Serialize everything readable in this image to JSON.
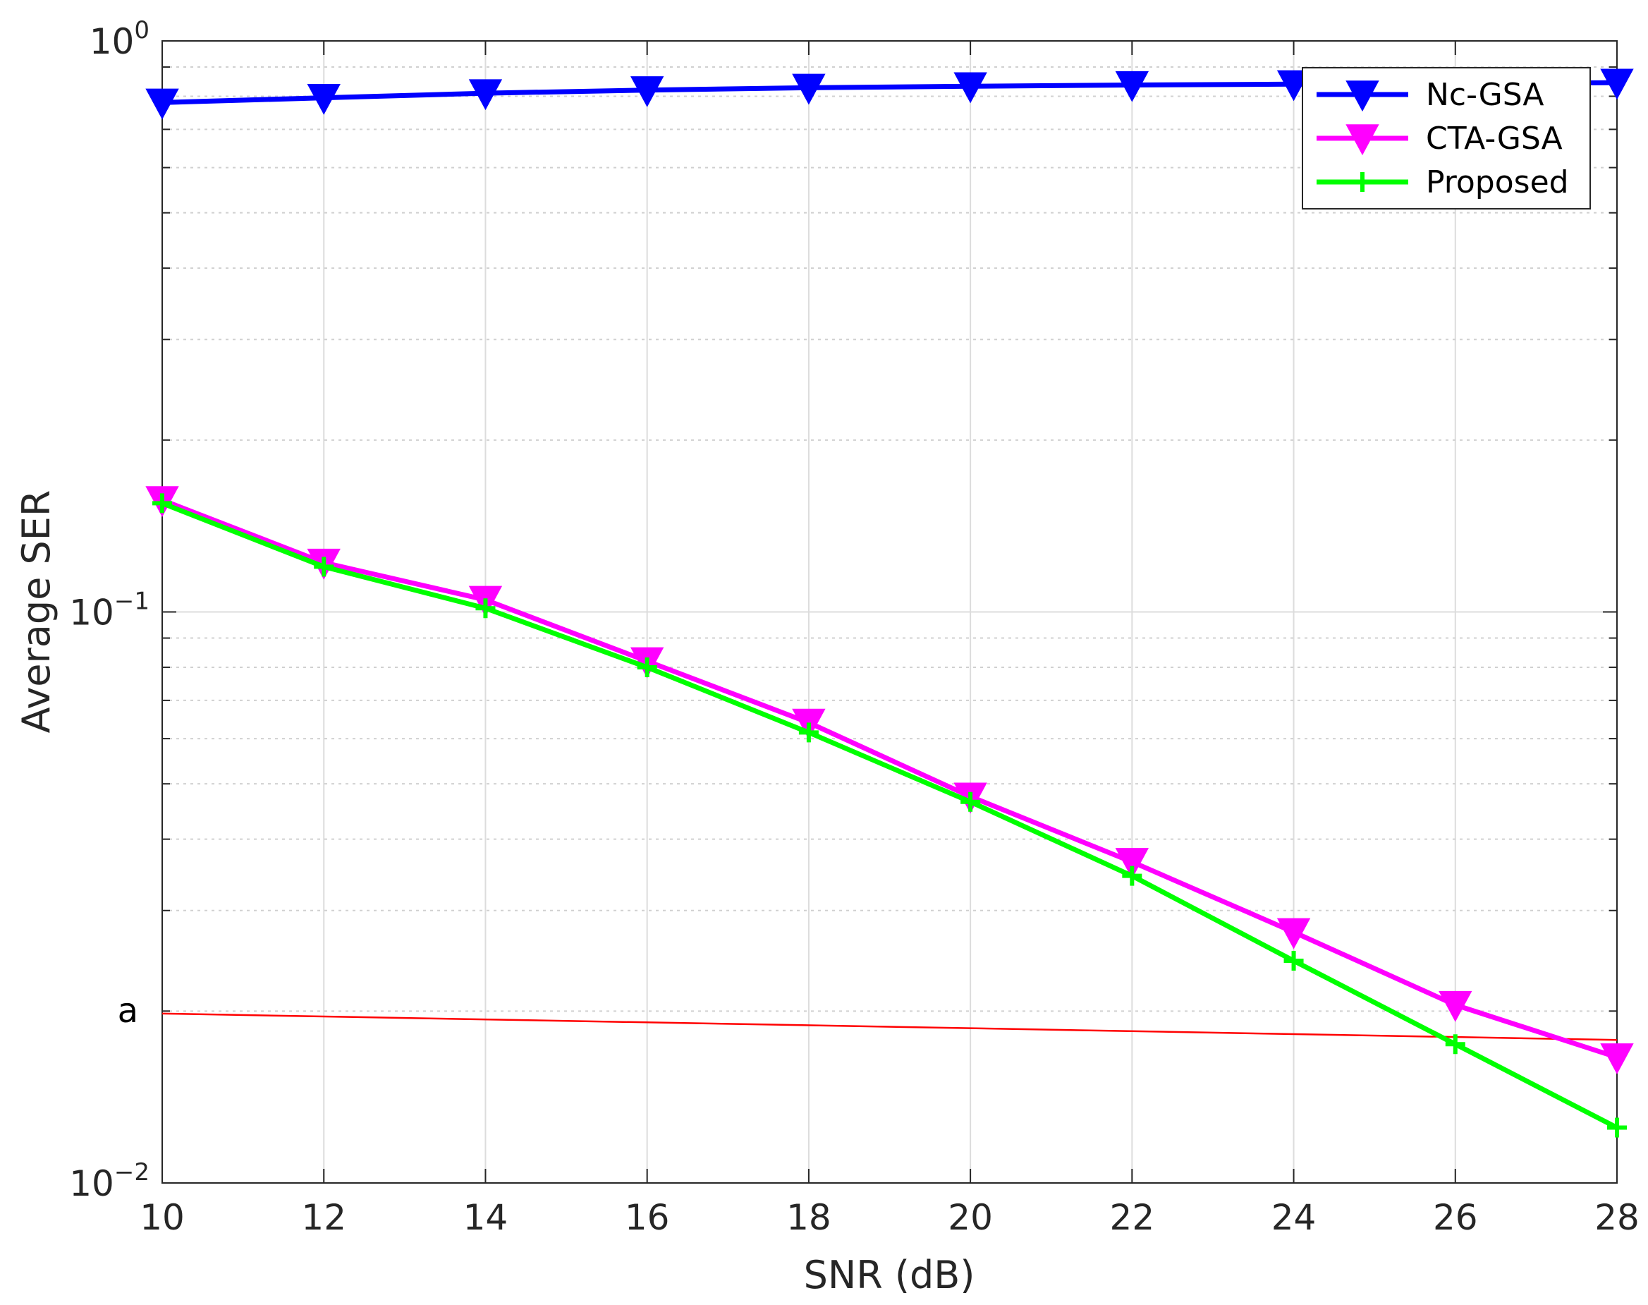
{
  "chart_data": {
    "type": "line",
    "xlabel": "SNR (dB)",
    "ylabel": "Average SER",
    "x": [
      10,
      12,
      14,
      16,
      18,
      20,
      22,
      24,
      26,
      28
    ],
    "xlim": [
      10,
      28
    ],
    "ylim": [
      0.01,
      1
    ],
    "yscale": "log",
    "grid": true,
    "legend_position": "top-right",
    "x_tick_labels": [
      "10",
      "12",
      "14",
      "16",
      "18",
      "20",
      "22",
      "24",
      "26",
      "28"
    ],
    "y_ticks": [
      {
        "value": 1,
        "base": "10",
        "exp": "0"
      },
      {
        "value": 0.1,
        "base": "10",
        "exp": "−1"
      },
      {
        "value": 0.01,
        "base": "10",
        "exp": "−2"
      }
    ],
    "series": [
      {
        "name": "Nc-GSA",
        "color": "#0000ff",
        "marker": "triangle-down",
        "values": [
          0.78,
          0.795,
          0.81,
          0.82,
          0.828,
          0.833,
          0.837,
          0.84,
          0.842,
          0.845
        ]
      },
      {
        "name": "CTA-GSA",
        "color": "#ff00ff",
        "marker": "triangle-down",
        "values": [
          0.157,
          0.122,
          0.105,
          0.082,
          0.064,
          0.0475,
          0.0365,
          0.0275,
          0.0205,
          0.0166
        ]
      },
      {
        "name": "Proposed",
        "color": "#00ff00",
        "marker": "plus",
        "values": [
          0.155,
          0.12,
          0.1015,
          0.08,
          0.0615,
          0.0465,
          0.0345,
          0.0245,
          0.0175,
          0.0125
        ]
      }
    ],
    "reference_line": {
      "label": "a",
      "color": "#ff0000",
      "y_start": 0.0198,
      "y_end": 0.0178
    }
  }
}
